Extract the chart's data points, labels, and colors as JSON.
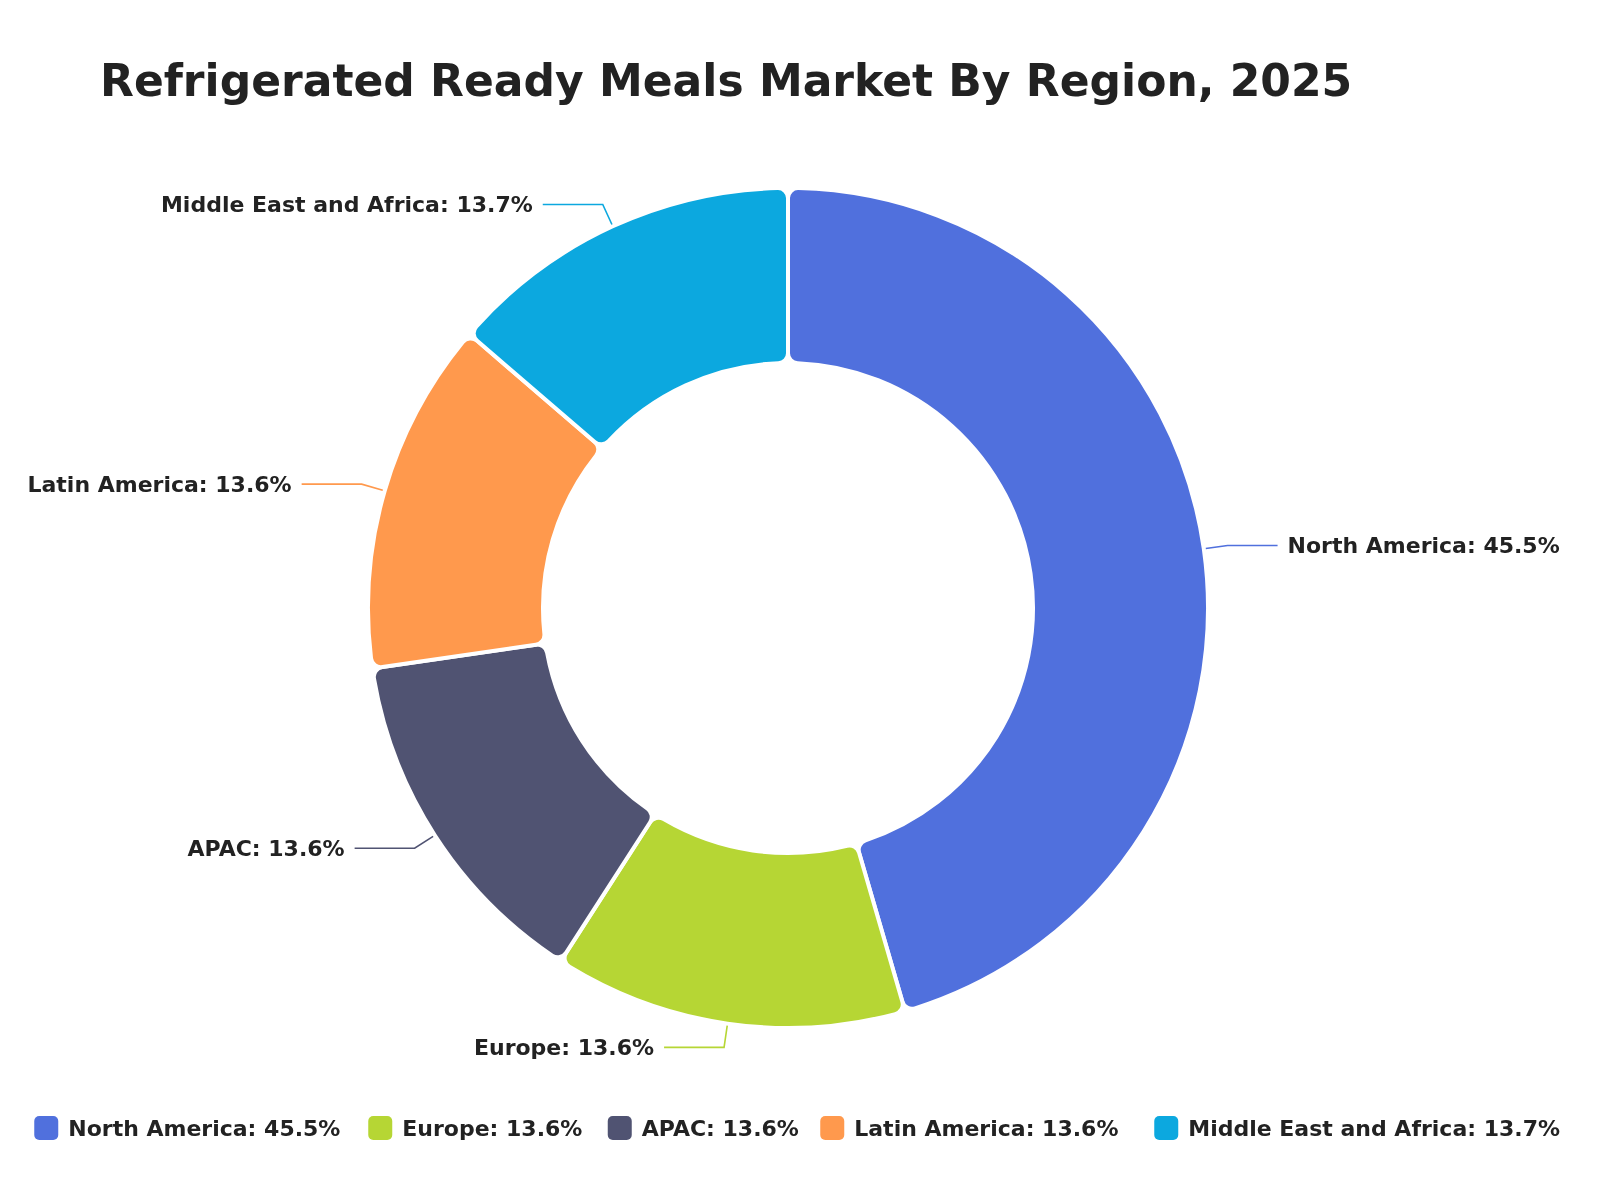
{
  "chart_data": {
    "type": "donut",
    "title": "Refrigerated Ready Meals Market By Region, 2025",
    "categories": [
      "North America",
      "Europe",
      "APAC",
      "Latin America",
      "Middle East and Africa"
    ],
    "values": [
      45.5,
      13.6,
      13.6,
      13.6,
      13.7
    ],
    "value_labels": [
      "45.5%",
      "13.6%",
      "13.6%",
      "13.6%",
      "13.7%"
    ],
    "colors": [
      "#5070dd",
      "#b6d634",
      "#505372",
      "#ff994d",
      "#0ca8df"
    ],
    "legend": "bottom"
  }
}
